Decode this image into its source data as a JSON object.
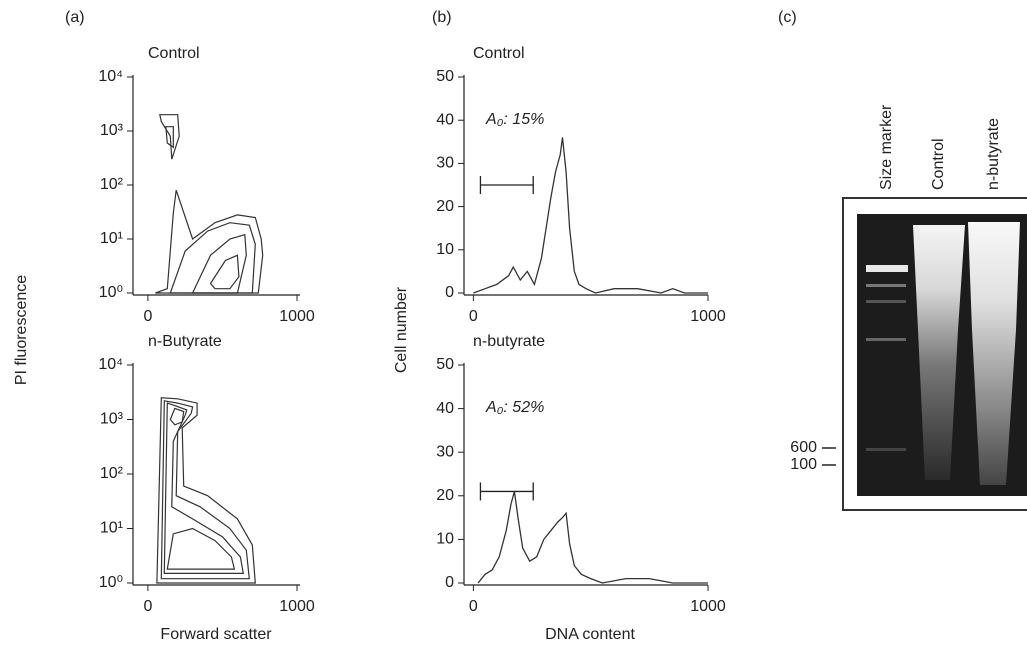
{
  "chart_data": [
    {
      "type": "contour",
      "panel_label": "(a)",
      "title": "Control",
      "ylabel": "PI fluorescence",
      "xlim": [
        -100,
        1020
      ],
      "xticks": [
        0,
        1000
      ],
      "log_y": true,
      "ylim": [
        1,
        10000
      ],
      "yticks": [
        {
          "value": 1,
          "label": "10⁰"
        },
        {
          "value": 10,
          "label": "10¹"
        },
        {
          "value": 100,
          "label": "10²"
        },
        {
          "value": 1000,
          "label": "10³"
        },
        {
          "value": 10000,
          "label": "10⁴"
        }
      ],
      "color": "#333333",
      "contours": [
        {
          "x": [
            80,
            200,
            210,
            160,
            150,
            90
          ],
          "y": [
            2000,
            2000,
            800,
            300,
            800,
            1500
          ]
        },
        {
          "x": [
            120,
            170,
            170,
            130
          ],
          "y": [
            1200,
            1200,
            500,
            600
          ]
        },
        {
          "x": [
            50,
            130,
            170,
            190,
            300,
            450,
            600,
            720,
            760,
            770,
            740,
            50
          ],
          "y": [
            1,
            1.2,
            30,
            80,
            10,
            20,
            28,
            25,
            10,
            5,
            1,
            1
          ]
        },
        {
          "x": [
            150,
            250,
            400,
            550,
            680,
            720,
            700,
            200
          ],
          "y": [
            1,
            6,
            14,
            20,
            18,
            8,
            1,
            1
          ]
        },
        {
          "x": [
            300,
            420,
            550,
            650,
            660,
            600,
            350
          ],
          "y": [
            1,
            5,
            10,
            12,
            5,
            1,
            1
          ]
        },
        {
          "x": [
            420,
            520,
            600,
            610,
            550,
            450
          ],
          "y": [
            1.5,
            4,
            5,
            2,
            1.2,
            1.2
          ]
        }
      ]
    },
    {
      "type": "contour",
      "title": "n-Butyrate",
      "xlabel": "Forward scatter",
      "xlim": [
        -100,
        1020
      ],
      "xticks": [
        0,
        1000
      ],
      "log_y": true,
      "ylim": [
        1,
        10000
      ],
      "yticks": [
        {
          "value": 1,
          "label": "10⁰"
        },
        {
          "value": 10,
          "label": "10¹"
        },
        {
          "value": 100,
          "label": "10²"
        },
        {
          "value": 1000,
          "label": "10³"
        },
        {
          "value": 10000,
          "label": "10⁴"
        }
      ],
      "color": "#333333",
      "contours": [
        {
          "x": [
            60,
            90,
            200,
            330,
            330,
            230,
            240,
            400,
            600,
            700,
            720,
            60
          ],
          "y": [
            1,
            2500,
            2400,
            2000,
            1200,
            700,
            60,
            40,
            15,
            5,
            1,
            1
          ]
        },
        {
          "x": [
            90,
            110,
            200,
            300,
            290,
            200,
            190,
            350,
            550,
            660,
            680,
            100
          ],
          "y": [
            1.2,
            2200,
            2000,
            1700,
            1300,
            600,
            40,
            25,
            10,
            4,
            1.2,
            1.2
          ]
        },
        {
          "x": [
            110,
            130,
            180,
            260,
            250,
            170,
            160,
            300,
            500,
            620,
            640,
            130
          ],
          "y": [
            1.5,
            2000,
            1800,
            1500,
            1200,
            400,
            25,
            15,
            7,
            3,
            1.5,
            1.5
          ]
        },
        {
          "x": [
            130,
            170,
            300,
            450,
            560,
            580,
            200
          ],
          "y": [
            1.8,
            8,
            10,
            6,
            3,
            1.8,
            1.8
          ]
        },
        {
          "x": [
            150,
            180,
            240,
            230,
            180
          ],
          "y": [
            1000,
            1600,
            1400,
            900,
            800
          ]
        }
      ]
    },
    {
      "type": "line",
      "panel_label": "(b)",
      "title": "Control",
      "ylabel": "Cell number",
      "annotation": "A₀: 15%",
      "xlim": [
        -40,
        1000
      ],
      "xticks": [
        0,
        1000
      ],
      "ylim": [
        0,
        50
      ],
      "yticks": [
        0,
        10,
        20,
        30,
        40,
        50
      ],
      "gate": {
        "xmin": 30,
        "xmax": 255,
        "y": 25
      },
      "color": "#333333",
      "x": [
        0,
        50,
        100,
        150,
        170,
        200,
        230,
        260,
        290,
        310,
        330,
        350,
        370,
        380,
        395,
        410,
        430,
        450,
        480,
        520,
        600,
        700,
        800,
        850,
        900,
        1000
      ],
      "values": [
        0,
        1,
        2,
        4,
        6,
        3,
        5,
        2,
        8,
        15,
        22,
        28,
        32,
        36,
        28,
        15,
        5,
        2,
        1,
        0,
        1,
        1,
        0,
        1,
        0,
        0
      ]
    },
    {
      "type": "line",
      "title": "n-butyrate",
      "xlabel": "DNA content",
      "annotation": "A₀: 52%",
      "xlim": [
        -40,
        1000
      ],
      "xticks": [
        0,
        1000
      ],
      "ylim": [
        0,
        50
      ],
      "yticks": [
        0,
        10,
        20,
        30,
        40,
        50
      ],
      "gate": {
        "xmin": 30,
        "xmax": 255,
        "y": 21
      },
      "color": "#333333",
      "x": [
        20,
        50,
        80,
        110,
        140,
        160,
        175,
        190,
        210,
        240,
        270,
        300,
        330,
        360,
        380,
        395,
        410,
        430,
        460,
        500,
        550,
        650,
        750,
        850,
        950,
        1000
      ],
      "values": [
        0,
        2,
        3,
        6,
        12,
        18,
        21,
        15,
        8,
        5,
        6,
        10,
        12,
        14,
        15,
        16,
        9,
        4,
        2,
        1,
        0,
        1,
        1,
        0,
        0,
        0
      ]
    },
    {
      "type": "gel",
      "panel_label": "(c)",
      "categories": [
        "Size marker",
        "Control",
        "n-butyrate"
      ],
      "marker_labels": [
        "600",
        "100"
      ]
    }
  ]
}
